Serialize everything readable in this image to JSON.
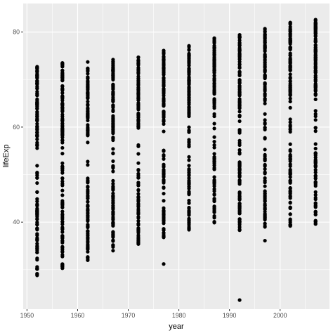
{
  "chart_data": {
    "type": "scatter",
    "title": "",
    "xlabel": "year",
    "ylabel": "lifeExp",
    "xlim": [
      1949.25,
      2009.75
    ],
    "ylim": [
      21.7,
      86.0
    ],
    "x_ticks": [
      1950,
      1960,
      1970,
      1980,
      1990,
      2000
    ],
    "x_tick_labels": [
      "1950",
      "1960",
      "1970",
      "1980",
      "1990",
      "2000"
    ],
    "y_ticks": [
      40,
      60,
      80
    ],
    "y_tick_labels": [
      "40",
      "60",
      "80"
    ],
    "grid": true,
    "legend": "none",
    "colors": {
      "panel": "#ebebeb",
      "grid": "#ffffff",
      "point": "#000000"
    },
    "point_groups": [
      {
        "x": 1952,
        "y_min": 28.8,
        "y_max": 72.7,
        "outliers": []
      },
      {
        "x": 1957,
        "y_min": 30.3,
        "y_max": 73.5,
        "outliers": []
      },
      {
        "x": 1962,
        "y_min": 32.0,
        "y_max": 73.7,
        "outliers": []
      },
      {
        "x": 1967,
        "y_min": 34.0,
        "y_max": 74.2,
        "outliers": []
      },
      {
        "x": 1972,
        "y_min": 35.4,
        "y_max": 74.7,
        "outliers": []
      },
      {
        "x": 1977,
        "y_min": 36.8,
        "y_max": 76.1,
        "outliers": [
          31.2
        ]
      },
      {
        "x": 1982,
        "y_min": 38.4,
        "y_max": 77.1,
        "outliers": []
      },
      {
        "x": 1987,
        "y_min": 39.9,
        "y_max": 78.7,
        "outliers": []
      },
      {
        "x": 1992,
        "y_min": 38.3,
        "y_max": 79.4,
        "outliers": [
          23.6
        ]
      },
      {
        "x": 1997,
        "y_min": 39.0,
        "y_max": 80.7,
        "outliers": [
          36.1
        ]
      },
      {
        "x": 2002,
        "y_min": 39.2,
        "y_max": 82.0,
        "outliers": []
      },
      {
        "x": 2007,
        "y_min": 39.6,
        "y_max": 82.6,
        "outliers": []
      }
    ]
  }
}
